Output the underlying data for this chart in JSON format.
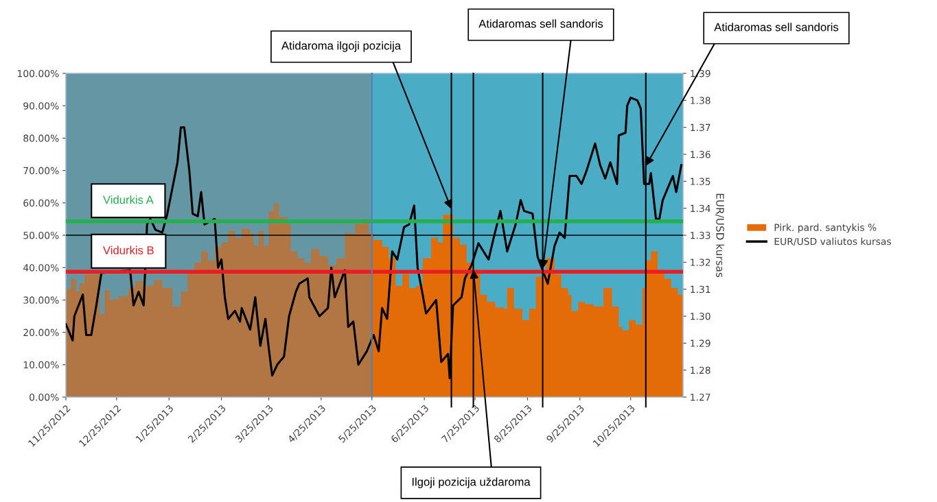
{
  "chart_data": {
    "type": "area",
    "y2label": "EUR/USD kursas",
    "xlim": [
      "2012-11-25",
      "2013-11-25"
    ],
    "xticks": [
      {
        "value": "2012-11-25",
        "label": "11/25/2012"
      },
      {
        "value": "2012-12-25",
        "label": "12/25/2012"
      },
      {
        "value": "2013-01-25",
        "label": "1/25/2013"
      },
      {
        "value": "2013-02-25",
        "label": "2/25/2013"
      },
      {
        "value": "2013-03-25",
        "label": "3/25/2013"
      },
      {
        "value": "2013-04-25",
        "label": "4/25/2013"
      },
      {
        "value": "2013-05-25",
        "label": "5/25/2013"
      },
      {
        "value": "2013-06-25",
        "label": "6/25/2013"
      },
      {
        "value": "2013-07-25",
        "label": "7/25/2013"
      },
      {
        "value": "2013-08-25",
        "label": "8/25/2013"
      },
      {
        "value": "2013-09-25",
        "label": "9/25/2013"
      },
      {
        "value": "2013-10-25",
        "label": "10/25/2013"
      }
    ],
    "ylim": [
      0,
      100
    ],
    "yticks": [
      {
        "value": 0,
        "label": "0.00%"
      },
      {
        "value": 10,
        "label": "10.00%"
      },
      {
        "value": 20,
        "label": "20.00%"
      },
      {
        "value": 30,
        "label": "30.00%"
      },
      {
        "value": 40,
        "label": "40.00%"
      },
      {
        "value": 50,
        "label": "50.00%"
      },
      {
        "value": 60,
        "label": "60.00%"
      },
      {
        "value": 70,
        "label": "70.00%"
      },
      {
        "value": 80,
        "label": "80.00%"
      },
      {
        "value": 90,
        "label": "90.00%"
      },
      {
        "value": 100,
        "label": "100.00%"
      }
    ],
    "y2lim": [
      1.27,
      1.39
    ],
    "y2ticks": [
      1.27,
      1.28,
      1.29,
      {
        "value": 1.3,
        "label": "1.30"
      },
      1.31,
      1.32,
      1.33,
      1.34,
      1.35,
      1.36,
      1.37,
      1.38,
      1.39
    ],
    "grid": false,
    "legend": "right",
    "series": [
      {
        "name": "Pirk. pard. santykis %",
        "color": "#e36c09",
        "x": [
          "2012-11-25",
          "2012-11-28",
          "2012-12-01",
          "2012-12-03",
          "2012-12-06",
          "2012-12-10",
          "2012-12-15",
          "2012-12-18",
          "2012-12-21",
          "2012-12-26",
          "2013-01-01",
          "2013-01-05",
          "2013-01-10",
          "2013-01-16",
          "2013-01-21",
          "2013-01-27",
          "2013-02-01",
          "2013-02-05",
          "2013-02-09",
          "2013-02-13",
          "2013-02-17",
          "2013-02-21",
          "2013-02-25",
          "2013-03-01",
          "2013-03-05",
          "2013-03-09",
          "2013-03-14",
          "2013-03-16",
          "2013-03-19",
          "2013-03-22",
          "2013-03-25",
          "2013-03-28",
          "2013-03-31",
          "2013-04-05",
          "2013-04-07",
          "2013-04-11",
          "2013-04-15",
          "2013-04-19",
          "2013-04-24",
          "2013-04-29",
          "2013-05-04",
          "2013-05-09",
          "2013-05-15",
          "2013-05-19",
          "2013-05-23",
          "2013-05-26",
          "2013-05-31",
          "2013-06-04",
          "2013-06-08",
          "2013-06-12",
          "2013-06-16",
          "2013-06-20",
          "2013-06-24",
          "2013-06-29",
          "2013-07-03",
          "2013-07-06",
          "2013-07-10",
          "2013-07-12",
          "2013-07-16",
          "2013-07-20",
          "2013-07-24",
          "2013-07-28",
          "2013-08-01",
          "2013-08-06",
          "2013-08-11",
          "2013-08-13",
          "2013-08-17",
          "2013-08-22",
          "2013-08-26",
          "2013-08-30",
          "2013-09-03",
          "2013-09-05",
          "2013-09-10",
          "2013-09-14",
          "2013-09-18",
          "2013-09-20",
          "2013-09-24",
          "2013-09-28",
          "2013-10-03",
          "2013-10-09",
          "2013-10-14",
          "2013-10-18",
          "2013-10-20",
          "2013-10-24",
          "2013-10-28",
          "2013-11-01",
          "2013-11-03",
          "2013-11-06",
          "2013-11-10",
          "2013-11-14",
          "2013-11-18",
          "2013-11-22",
          "2013-11-25"
        ],
        "values": [
          33.3,
          36.5,
          32.6,
          35.1,
          37.9,
          37.9,
          25.6,
          33.0,
          30.2,
          31.2,
          33.7,
          35.8,
          34.4,
          36.2,
          33.7,
          28.0,
          32.6,
          38.6,
          41.5,
          45.0,
          42.2,
          46.4,
          47.8,
          51.3,
          49.2,
          52.0,
          50.6,
          46.8,
          51.3,
          46.8,
          57.3,
          59.8,
          55.6,
          53.5,
          45.0,
          42.9,
          41.5,
          45.7,
          43.6,
          40.7,
          42.9,
          50.6,
          53.5,
          54.9,
          50.6,
          48.5,
          46.4,
          42.9,
          34.4,
          37.9,
          33.7,
          34.4,
          42.9,
          49.2,
          47.8,
          56.3,
          56.3,
          49.2,
          47.1,
          41.5,
          39.3,
          31.6,
          29.4,
          27.7,
          27.3,
          33.7,
          27.3,
          23.8,
          27.3,
          37.2,
          37.9,
          42.9,
          37.9,
          33.7,
          31.6,
          26.6,
          29.4,
          28.7,
          28.0,
          33.7,
          28.0,
          21.7,
          20.6,
          23.8,
          22.4,
          33.7,
          42.2,
          45.0,
          39.3,
          36.5,
          33.7,
          31.6,
          28.4
        ]
      },
      {
        "name": "EUR/USD valiutos kursas",
        "type": "line",
        "axis": "y2",
        "color": "#000000",
        "x": [
          "2012-11-25",
          "2012-11-29",
          "2012-11-30",
          "2012-12-05",
          "2012-12-07",
          "2012-12-10",
          "2012-12-13",
          "2012-12-16",
          "2013-01-02",
          "2013-01-04",
          "2013-01-07",
          "2013-01-10",
          "2013-01-12",
          "2013-01-14",
          "2013-01-17",
          "2013-01-21",
          "2013-01-24",
          "2013-01-30",
          "2013-02-01",
          "2013-02-03",
          "2013-02-06",
          "2013-02-08",
          "2013-02-11",
          "2013-02-13",
          "2013-02-15",
          "2013-02-21",
          "2013-02-23",
          "2013-02-25",
          "2013-02-27",
          "2013-03-01",
          "2013-03-05",
          "2013-03-08",
          "2013-03-09",
          "2013-03-14",
          "2013-03-17",
          "2013-03-20",
          "2013-03-23",
          "2013-03-25",
          "2013-03-27",
          "2013-03-30",
          "2013-04-03",
          "2013-04-06",
          "2013-04-10",
          "2013-04-12",
          "2013-04-17",
          "2013-04-18",
          "2013-04-24",
          "2013-04-29",
          "2013-05-01",
          "2013-05-03",
          "2013-05-09",
          "2013-05-11",
          "2013-05-14",
          "2013-05-17",
          "2013-05-22",
          "2013-05-26",
          "2013-05-29",
          "2013-05-31",
          "2013-06-03",
          "2013-06-06",
          "2013-06-09",
          "2013-06-13",
          "2013-06-16",
          "2013-06-19",
          "2013-06-21",
          "2013-06-24",
          "2013-06-26",
          "2013-07-02",
          "2013-07-05",
          "2013-07-09",
          "2013-07-10",
          "2013-07-12",
          "2013-07-17",
          "2013-07-19",
          "2013-07-23",
          "2013-07-27",
          "2013-08-02",
          "2013-08-05",
          "2013-08-09",
          "2013-08-13",
          "2013-08-18",
          "2013-08-21",
          "2013-08-23",
          "2013-08-28",
          "2013-08-31",
          "2013-09-03",
          "2013-09-06",
          "2013-09-10",
          "2013-09-13",
          "2013-09-16",
          "2013-09-19",
          "2013-09-23",
          "2013-09-26",
          "2013-09-29",
          "2013-10-04",
          "2013-10-07",
          "2013-10-10",
          "2013-10-13",
          "2013-10-17",
          "2013-10-18",
          "2013-10-22",
          "2013-10-23",
          "2013-10-25",
          "2013-10-29",
          "2013-10-31",
          "2013-11-02",
          "2013-11-05",
          "2013-11-06",
          "2013-11-09",
          "2013-11-11",
          "2013-11-13",
          "2013-11-19",
          "2013-11-21",
          "2013-11-24"
        ],
        "values": [
          1.297,
          1.291,
          1.3,
          1.308,
          1.293,
          1.293,
          1.304,
          1.316,
          1.317,
          1.304,
          1.309,
          1.304,
          1.334,
          1.336,
          1.332,
          1.331,
          1.338,
          1.357,
          1.37,
          1.37,
          1.354,
          1.338,
          1.337,
          1.346,
          1.334,
          1.336,
          1.318,
          1.321,
          1.307,
          1.299,
          1.302,
          1.298,
          1.303,
          1.295,
          1.307,
          1.289,
          1.299,
          1.288,
          1.278,
          1.282,
          1.285,
          1.3,
          1.309,
          1.312,
          1.314,
          1.307,
          1.3,
          1.303,
          1.318,
          1.307,
          1.317,
          1.296,
          1.298,
          1.282,
          1.287,
          1.293,
          1.287,
          1.303,
          1.299,
          1.324,
          1.321,
          1.333,
          1.334,
          1.341,
          1.318,
          1.308,
          1.301,
          1.306,
          1.283,
          1.286,
          1.277,
          1.304,
          1.307,
          1.314,
          1.319,
          1.327,
          1.321,
          1.329,
          1.339,
          1.324,
          1.334,
          1.343,
          1.339,
          1.338,
          1.322,
          1.317,
          1.312,
          1.326,
          1.331,
          1.329,
          1.352,
          1.352,
          1.349,
          1.354,
          1.364,
          1.356,
          1.351,
          1.357,
          1.349,
          1.367,
          1.368,
          1.378,
          1.381,
          1.38,
          1.377,
          1.349,
          1.349,
          1.353,
          1.336,
          1.336,
          1.343,
          1.352,
          1.346,
          1.356
        ]
      }
    ],
    "bands": [
      {
        "axis": "x",
        "from": "2012-11-25",
        "to": "2013-11-25",
        "color": "#4bacc6"
      },
      {
        "axis": "x",
        "from": "2012-11-25",
        "to": "2013-05-25",
        "color": "#7f7f7f"
      }
    ],
    "ref_lines": [
      {
        "axis": "y",
        "value": 54.3,
        "label": "Vidurkis A",
        "color": "#22b14c"
      },
      {
        "axis": "y",
        "value": 38.7,
        "label": "Vidurkis B",
        "color": "#ed1c24"
      },
      {
        "axis": "y",
        "value": 50,
        "color": "#000000"
      },
      {
        "axis": "x",
        "value": "2013-05-25",
        "color": "#4f81bd"
      },
      {
        "axis": "x",
        "value": "2013-07-11",
        "color": "#000000"
      },
      {
        "axis": "x",
        "value": "2013-07-24",
        "color": "#000000"
      },
      {
        "axis": "x",
        "value": "2013-09-03",
        "color": "#000000"
      },
      {
        "axis": "x",
        "value": "2013-11-03",
        "color": "#000000"
      }
    ],
    "annotations": [
      {
        "text": "Atidaroma ilgoji pozicija",
        "x": "2013-07-11",
        "y": 58.1
      },
      {
        "text": "Atidaromas sell sandoris",
        "x": "2013-09-03",
        "y": 39.6
      },
      {
        "text": "Atidaromas sell sandoris",
        "x": "2013-11-03",
        "y": 71.4
      },
      {
        "text": "Ilgoji pozicija uždaroma",
        "x": "2013-07-24",
        "y": 39.4
      }
    ]
  }
}
